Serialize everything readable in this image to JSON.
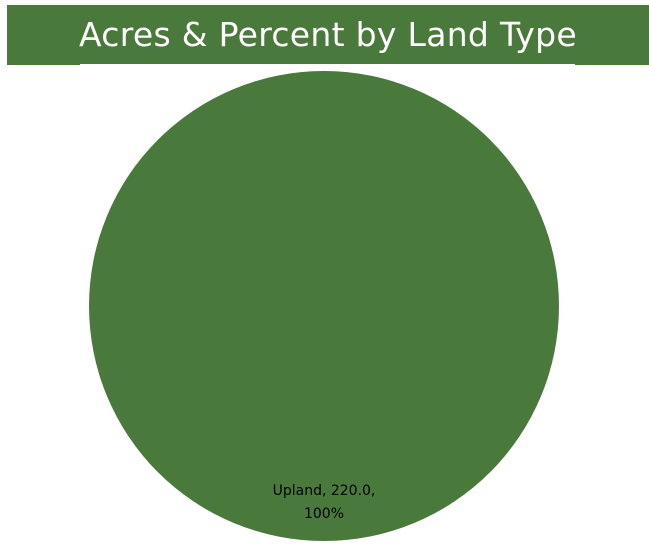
{
  "chart_data": {
    "type": "pie",
    "title": "Acres & Percent by Land Type",
    "slices": [
      {
        "label": "Upland",
        "value": 220.0,
        "percent": 100,
        "color": "#4a7a3b",
        "data_label_line1": "Upland, 220.0,",
        "data_label_line2": "100%"
      }
    ],
    "legend": "none"
  },
  "colors": {
    "title_bar": "#4a7a3b",
    "title_text": "#ffffff"
  }
}
